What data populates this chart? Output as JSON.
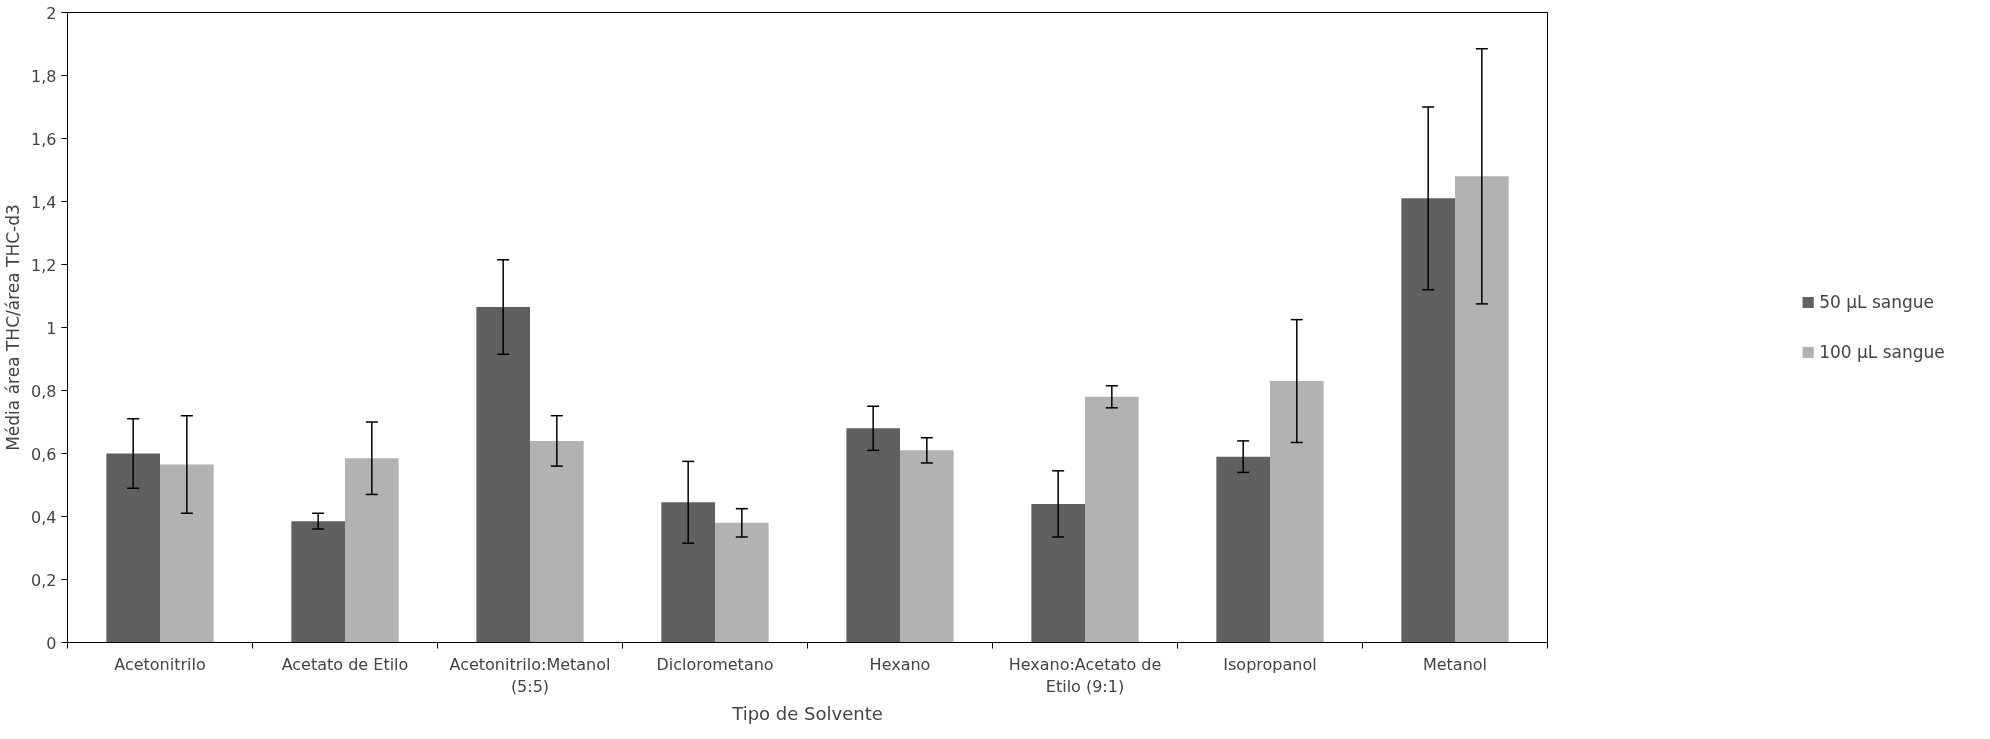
{
  "chart_data": {
    "type": "bar",
    "xlabel": "Tipo de Solvente",
    "ylabel": "Média área THC/área THC-d3",
    "categories": [
      "Acetonitrilo",
      "Acetato de Etilo",
      "Acetonitrilo:Metanol (5:5)",
      "Diclorometano",
      "Hexano",
      "Hexano:Acetato de Etilo (9:1)",
      "Isopropanol",
      "Metanol"
    ],
    "series": [
      {
        "name": "50 µL sangue",
        "color": "#606060",
        "values": [
          0.6,
          0.385,
          1.065,
          0.445,
          0.68,
          0.44,
          0.59,
          1.41
        ],
        "errors": [
          0.11,
          0.025,
          0.15,
          0.13,
          0.07,
          0.105,
          0.05,
          0.29
        ]
      },
      {
        "name": "100 µL sangue",
        "color": "#b2b2b2",
        "values": [
          0.565,
          0.585,
          0.64,
          0.38,
          0.61,
          0.78,
          0.83,
          1.48
        ],
        "errors": [
          0.155,
          0.115,
          0.08,
          0.045,
          0.04,
          0.035,
          0.195,
          0.405
        ]
      }
    ],
    "ylim": [
      0,
      2
    ],
    "yticks": [
      {
        "value": 0,
        "label": "0"
      },
      {
        "value": 0.2,
        "label": "0,2"
      },
      {
        "value": 0.4,
        "label": "0,4"
      },
      {
        "value": 0.6,
        "label": "0,6"
      },
      {
        "value": 0.8,
        "label": "0,8"
      },
      {
        "value": 1,
        "label": "1"
      },
      {
        "value": 1.2,
        "label": "1,2"
      },
      {
        "value": 1.4,
        "label": "1,4"
      },
      {
        "value": 1.6,
        "label": "1,6"
      },
      {
        "value": 1.8,
        "label": "1,8"
      },
      {
        "value": 2,
        "label": "2"
      }
    ],
    "grid": false,
    "legend": "right"
  }
}
